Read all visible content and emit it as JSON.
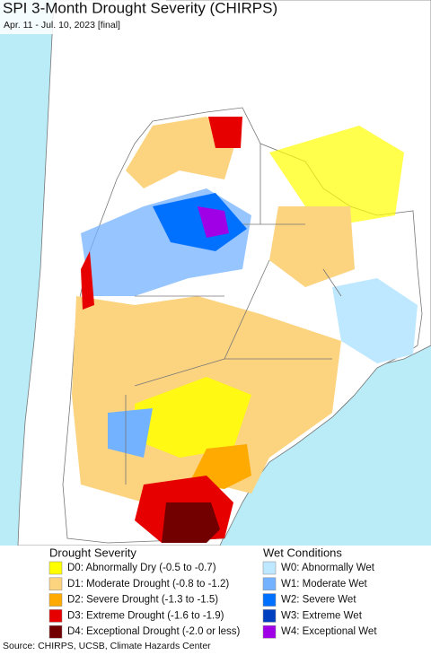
{
  "title": "SPI 3-Month Drought Severity (CHIRPS)",
  "subtitle": "Apr. 11 - Jul. 10, 2023 [final]",
  "legend": {
    "drought": {
      "title": "Drought Severity",
      "items": [
        {
          "label": "D0: Abnormally Dry (-0.5 to -0.7)",
          "color": "#ffff00"
        },
        {
          "label": "D1: Moderate Drought (-0.8 to -1.2)",
          "color": "#fcd37f"
        },
        {
          "label": "D2: Severe Drought (-1.3 to -1.5)",
          "color": "#ffaa00"
        },
        {
          "label": "D3: Extreme Drought (-1.6 to -1.9)",
          "color": "#e60000"
        },
        {
          "label": "D4: Exceptional Drought (-2.0 or less)",
          "color": "#730000"
        }
      ]
    },
    "wet": {
      "title": "Wet Conditions",
      "items": [
        {
          "label": "W0: Abnormally Wet",
          "color": "#bee8ff"
        },
        {
          "label": "W1: Moderate Wet",
          "color": "#73b2ff"
        },
        {
          "label": "W2: Severe Wet",
          "color": "#0070ff"
        },
        {
          "label": "W3: Extreme Wet",
          "color": "#0040c0"
        },
        {
          "label": "W4: Exceptional Wet",
          "color": "#a000e6"
        }
      ]
    }
  },
  "source": "Source: CHIRPS, UCSB, Climate Hazards Center"
}
